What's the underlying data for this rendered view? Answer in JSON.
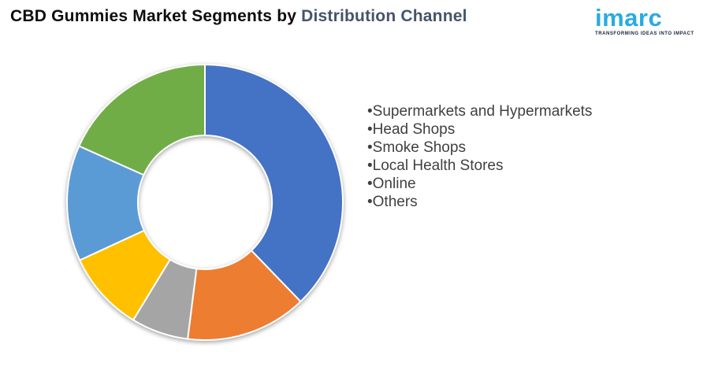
{
  "header": {
    "title_part1": "CBD Gummies Market Segments by ",
    "title_part2": "Distribution Channel",
    "title_part1_color": "#0d0d0d",
    "title_part2_color": "#44546a"
  },
  "logo": {
    "name": "imarc",
    "tagline": "TRANSFORMING IDEAS INTO IMPACT",
    "color": "#29abe2",
    "tagline_color": "#14213d"
  },
  "legend": {
    "bullet": "•",
    "items": [
      "Supermarkets and Hypermarkets",
      "Head Shops",
      "Smoke Shops",
      "Local Health Stores",
      "Online",
      "Others"
    ],
    "text_color": "#404040"
  },
  "chart_data": {
    "type": "pie",
    "subtype": "donut",
    "title": "CBD Gummies Market Segments by Distribution Channel",
    "categories": [
      "Supermarkets and Hypermarkets",
      "Head Shops",
      "Smoke Shops",
      "Local Health Stores",
      "Online",
      "Others"
    ],
    "values": [
      37.8,
      14.2,
      6.7,
      9.4,
      13.6,
      18.3
    ],
    "values_note": "share in percent, estimated from segment arc angles (no data labels shown)",
    "colors": [
      "#4472c4",
      "#ed7d31",
      "#a5a5a5",
      "#ffc000",
      "#5b9bd5",
      "#70ad47"
    ],
    "start_angle_deg": 0,
    "direction": "clockwise",
    "inner_radius_ratio": 0.486,
    "outer_radius_px": 175,
    "gap_stroke_color": "#ffffff",
    "data_labels": false,
    "legend_position": "right",
    "legend_style": "plain bulleted text list"
  }
}
